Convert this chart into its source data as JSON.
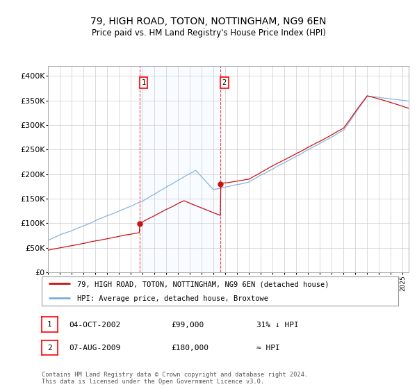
{
  "title": "79, HIGH ROAD, TOTON, NOTTINGHAM, NG9 6EN",
  "subtitle": "Price paid vs. HM Land Registry's House Price Index (HPI)",
  "hpi_color": "#7aaddc",
  "price_color": "#cc1111",
  "purchase1_x": 2002.75,
  "purchase1_price": 99000,
  "purchase2_x": 2009.58,
  "purchase2_price": 180000,
  "legend_line1": "79, HIGH ROAD, TOTON, NOTTINGHAM, NG9 6EN (detached house)",
  "legend_line2": "HPI: Average price, detached house, Broxtowe",
  "table_row1_num": "1",
  "table_row1_date": "04-OCT-2002",
  "table_row1_price": "£99,000",
  "table_row1_hpi": "31% ↓ HPI",
  "table_row2_num": "2",
  "table_row2_date": "07-AUG-2009",
  "table_row2_price": "£180,000",
  "table_row2_hpi": "≈ HPI",
  "footer": "Contains HM Land Registry data © Crown copyright and database right 2024.\nThis data is licensed under the Open Government Licence v3.0.",
  "background_color": "#ffffff",
  "shade_color": "#ddeeff",
  "grid_color": "#cccccc",
  "xlim_start": 1995.0,
  "xlim_end": 2025.5,
  "ylim": [
    0,
    420000
  ],
  "yticks": [
    0,
    50000,
    100000,
    150000,
    200000,
    250000,
    300000,
    350000,
    400000
  ],
  "ytick_labels": [
    "£0",
    "£50K",
    "£100K",
    "£150K",
    "£200K",
    "£250K",
    "£300K",
    "£350K",
    "£400K"
  ]
}
